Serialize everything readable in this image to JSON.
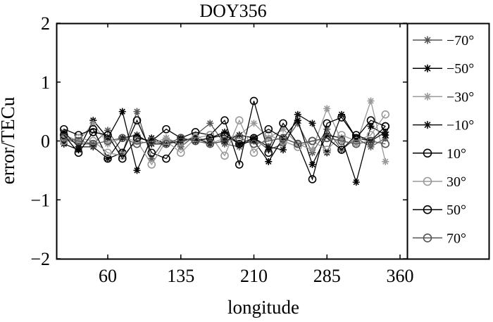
{
  "chart_data": {
    "type": "line",
    "title": "DOY356",
    "xlabel": "longitude",
    "ylabel": "error/TECu",
    "xlim": [
      0,
      360
    ],
    "ylim": [
      -2,
      2
    ],
    "xticks": [
      60,
      135,
      210,
      285,
      360
    ],
    "yticks": [
      2,
      1,
      0,
      -1,
      -2
    ],
    "ytick_labels": [
      "2",
      "1",
      "0",
      "−1",
      "−2"
    ],
    "legend_position": "right, outside plot",
    "x": [
      15,
      30,
      45,
      60,
      75,
      90,
      105,
      120,
      135,
      150,
      165,
      180,
      195,
      210,
      225,
      240,
      255,
      270,
      285,
      300,
      315,
      330,
      345
    ],
    "series": [
      {
        "name": "−70°",
        "marker": "star",
        "color": "#555555",
        "values": [
          0.05,
          -0.05,
          -0.05,
          0.18,
          -0.2,
          0.5,
          -0.3,
          0.05,
          -0.1,
          0.1,
          0.3,
          -0.05,
          -0.1,
          0.05,
          -0.15,
          -0.05,
          0.3,
          -0.2,
          0.2,
          -0.15,
          0.05,
          -0.1,
          0.05
        ]
      },
      {
        "name": "−50°",
        "marker": "star",
        "color": "#000000",
        "values": [
          -0.05,
          -0.15,
          0.35,
          0.05,
          0.5,
          -0.5,
          0.05,
          -0.05,
          0.05,
          0.0,
          0.05,
          0.15,
          -0.05,
          0.0,
          -0.35,
          0.05,
          0.35,
          -0.4,
          0.1,
          0.05,
          -0.7,
          0.25,
          0.1
        ]
      },
      {
        "name": "−30°",
        "marker": "star",
        "color": "#999999",
        "values": [
          0.1,
          0.0,
          0.3,
          -0.05,
          0.05,
          0.0,
          -0.05,
          0.05,
          -0.05,
          0.1,
          -0.05,
          0.05,
          0.1,
          0.3,
          0.05,
          0.2,
          -0.05,
          -0.15,
          0.55,
          0.0,
          -0.05,
          0.68,
          -0.35
        ]
      },
      {
        "name": "−10°",
        "marker": "star",
        "color": "#111111",
        "values": [
          0.15,
          -0.1,
          -0.1,
          -0.3,
          0.05,
          0.1,
          -0.05,
          -0.05,
          0.0,
          0.05,
          -0.05,
          0.0,
          0.1,
          0.05,
          -0.1,
          -0.15,
          0.45,
          0.3,
          -0.2,
          0.45,
          0.05,
          0.0,
          0.15
        ]
      },
      {
        "name": "10°",
        "marker": "circle",
        "color": "#000000",
        "values": [
          0.2,
          0.1,
          0.2,
          -0.3,
          -0.2,
          0.35,
          -0.2,
          -0.3,
          0.05,
          0.15,
          0.1,
          0.35,
          -0.4,
          0.68,
          -0.2,
          0.3,
          -0.05,
          -0.65,
          0.3,
          0.4,
          0.05,
          0.35,
          0.25
        ]
      },
      {
        "name": "30°",
        "marker": "circle",
        "color": "#999999",
        "values": [
          0.0,
          0.05,
          0.0,
          -0.2,
          -0.25,
          0.0,
          -0.4,
          0.0,
          -0.2,
          0.05,
          0.1,
          -0.25,
          0.35,
          -0.2,
          0.1,
          0.0,
          -0.1,
          0.0,
          -0.15,
          0.1,
          0.0,
          0.1,
          0.45
        ]
      },
      {
        "name": "50°",
        "marker": "circle",
        "color": "#000000",
        "values": [
          0.1,
          -0.2,
          0.15,
          0.1,
          -0.3,
          0.05,
          0.0,
          0.2,
          0.05,
          0.0,
          0.05,
          0.1,
          -0.05,
          0.05,
          0.2,
          0.05,
          -0.05,
          0.0,
          0.05,
          -0.15,
          0.1,
          0.0,
          0.25
        ]
      },
      {
        "name": "70°",
        "marker": "circle",
        "color": "#555555",
        "values": [
          0.05,
          0.0,
          -0.05,
          0.0,
          0.05,
          -0.05,
          0.0,
          -0.05,
          0.05,
          0.0,
          -0.05,
          0.0,
          0.05,
          -0.05,
          0.0,
          0.05,
          -0.05,
          0.0,
          0.05,
          0.0,
          -0.05,
          0.0,
          -0.05
        ]
      }
    ]
  }
}
